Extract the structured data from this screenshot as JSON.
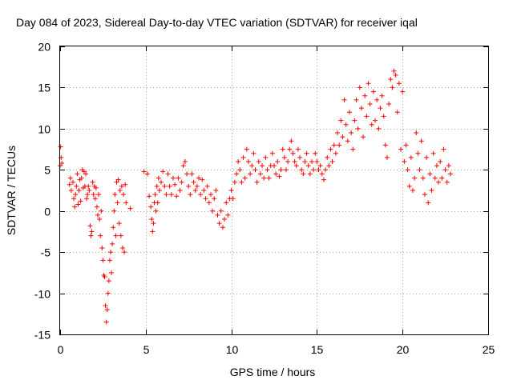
{
  "chart_data": {
    "type": "scatter",
    "title": "Day 084 of 2023, Sidereal Day-to-day VTEC variation (SDTVAR) for receiver iqal",
    "xlabel": "GPS time / hours",
    "ylabel": "SDTVAR / TECUs",
    "xlim": [
      0,
      25
    ],
    "ylim": [
      -15,
      20
    ],
    "xticks": [
      "0",
      "5",
      "10",
      "15",
      "20",
      "25"
    ],
    "yticks": [
      "-15",
      "-10",
      "-5",
      "0",
      "5",
      "10",
      "15",
      "20"
    ],
    "grid": true,
    "marker": "+",
    "series": [
      {
        "name": "iqal",
        "color": "#ff0000",
        "points": [
          [
            0.0,
            5.5
          ],
          [
            0.03,
            7.8
          ],
          [
            0.06,
            6.5
          ],
          [
            0.1,
            5.8
          ],
          [
            0.55,
            3.2
          ],
          [
            0.6,
            4.0
          ],
          [
            0.65,
            2.5
          ],
          [
            0.75,
            3.5
          ],
          [
            0.8,
            1.5
          ],
          [
            0.85,
            0.5
          ],
          [
            0.9,
            2.0
          ],
          [
            0.95,
            3.0
          ],
          [
            1.0,
            4.5
          ],
          [
            1.05,
            0.8
          ],
          [
            1.1,
            2.5
          ],
          [
            1.15,
            3.8
          ],
          [
            1.2,
            1.2
          ],
          [
            1.25,
            4.0
          ],
          [
            1.3,
            5.0
          ],
          [
            1.35,
            2.8
          ],
          [
            1.4,
            4.8
          ],
          [
            1.45,
            3.0
          ],
          [
            1.5,
            4.5
          ],
          [
            1.55,
            1.5
          ],
          [
            1.6,
            2.0
          ],
          [
            1.65,
            3.0
          ],
          [
            1.7,
            2.5
          ],
          [
            1.75,
            -1.8
          ],
          [
            1.8,
            -3.0
          ],
          [
            1.85,
            -2.5
          ],
          [
            1.9,
            3.5
          ],
          [
            1.95,
            2.0
          ],
          [
            2.0,
            3.0
          ],
          [
            2.05,
            1.5
          ],
          [
            2.1,
            2.8
          ],
          [
            2.15,
            0.5
          ],
          [
            2.2,
            -0.5
          ],
          [
            2.25,
            2.0
          ],
          [
            2.3,
            -1.0
          ],
          [
            2.35,
            -3.0
          ],
          [
            2.4,
            0.0
          ],
          [
            2.45,
            -4.5
          ],
          [
            2.5,
            -6.0
          ],
          [
            2.55,
            -7.8
          ],
          [
            2.6,
            -8.0
          ],
          [
            2.65,
            -11.5
          ],
          [
            2.7,
            -13.5
          ],
          [
            2.75,
            -12.0
          ],
          [
            2.8,
            -10.0
          ],
          [
            2.85,
            -8.5
          ],
          [
            2.9,
            -6.0
          ],
          [
            2.95,
            -5.0
          ],
          [
            3.0,
            -7.5
          ],
          [
            3.05,
            -4.0
          ],
          [
            3.1,
            -2.0
          ],
          [
            3.15,
            0.0
          ],
          [
            3.2,
            2.0
          ],
          [
            3.25,
            -3.0
          ],
          [
            3.3,
            3.5
          ],
          [
            3.35,
            1.0
          ],
          [
            3.4,
            3.8
          ],
          [
            3.45,
            -1.5
          ],
          [
            3.5,
            2.5
          ],
          [
            3.55,
            -3.0
          ],
          [
            3.6,
            3.0
          ],
          [
            3.65,
            -4.5
          ],
          [
            3.7,
            2.0
          ],
          [
            3.75,
            -5.0
          ],
          [
            3.8,
            3.2
          ],
          [
            3.85,
            1.0
          ],
          [
            4.1,
            0.3
          ],
          [
            4.9,
            4.8
          ],
          [
            5.1,
            4.5
          ],
          [
            5.2,
            1.8
          ],
          [
            5.3,
            0.5
          ],
          [
            5.35,
            -1.0
          ],
          [
            5.4,
            -2.5
          ],
          [
            5.45,
            -1.5
          ],
          [
            5.5,
            1.0
          ],
          [
            5.55,
            2.0
          ],
          [
            5.6,
            0.0
          ],
          [
            5.65,
            3.0
          ],
          [
            5.7,
            1.0
          ],
          [
            5.75,
            4.0
          ],
          [
            5.8,
            2.5
          ],
          [
            5.9,
            3.5
          ],
          [
            6.0,
            4.8
          ],
          [
            6.1,
            3.0
          ],
          [
            6.2,
            2.0
          ],
          [
            6.3,
            4.5
          ],
          [
            6.4,
            3.0
          ],
          [
            6.5,
            2.0
          ],
          [
            6.6,
            4.0
          ],
          [
            6.7,
            3.2
          ],
          [
            6.8,
            1.8
          ],
          [
            6.9,
            4.0
          ],
          [
            7.0,
            2.5
          ],
          [
            7.1,
            3.5
          ],
          [
            7.2,
            5.5
          ],
          [
            7.3,
            6.0
          ],
          [
            7.4,
            4.5
          ],
          [
            7.5,
            3.0
          ],
          [
            7.6,
            2.0
          ],
          [
            7.7,
            4.5
          ],
          [
            7.8,
            3.5
          ],
          [
            7.9,
            2.5
          ],
          [
            8.0,
            3.0
          ],
          [
            8.1,
            4.0
          ],
          [
            8.2,
            2.0
          ],
          [
            8.3,
            3.8
          ],
          [
            8.4,
            2.5
          ],
          [
            8.5,
            1.5
          ],
          [
            8.6,
            3.0
          ],
          [
            8.7,
            1.0
          ],
          [
            8.8,
            2.0
          ],
          [
            8.9,
            0.0
          ],
          [
            9.0,
            1.5
          ],
          [
            9.1,
            2.5
          ],
          [
            9.2,
            -0.5
          ],
          [
            9.3,
            -1.5
          ],
          [
            9.4,
            0.0
          ],
          [
            9.5,
            -2.0
          ],
          [
            9.6,
            -1.0
          ],
          [
            9.7,
            1.0
          ],
          [
            9.8,
            -0.5
          ],
          [
            9.9,
            1.5
          ],
          [
            10.0,
            2.5
          ],
          [
            10.1,
            1.5
          ],
          [
            10.2,
            3.5
          ],
          [
            10.3,
            4.5
          ],
          [
            10.4,
            6.0
          ],
          [
            10.5,
            5.0
          ],
          [
            10.6,
            3.5
          ],
          [
            10.7,
            6.5
          ],
          [
            10.8,
            4.0
          ],
          [
            10.9,
            7.5
          ],
          [
            11.0,
            6.0
          ],
          [
            11.1,
            4.5
          ],
          [
            11.2,
            5.5
          ],
          [
            11.3,
            7.0
          ],
          [
            11.4,
            5.0
          ],
          [
            11.5,
            3.5
          ],
          [
            11.6,
            6.0
          ],
          [
            11.7,
            4.5
          ],
          [
            11.8,
            5.5
          ],
          [
            11.9,
            4.0
          ],
          [
            12.0,
            6.5
          ],
          [
            12.1,
            5.0
          ],
          [
            12.2,
            4.0
          ],
          [
            12.3,
            5.5
          ],
          [
            12.4,
            7.0
          ],
          [
            12.5,
            5.5
          ],
          [
            12.6,
            4.5
          ],
          [
            12.7,
            6.0
          ],
          [
            12.8,
            4.2
          ],
          [
            12.9,
            5.0
          ],
          [
            13.0,
            7.5
          ],
          [
            13.1,
            6.5
          ],
          [
            13.2,
            5.0
          ],
          [
            13.3,
            6.0
          ],
          [
            13.4,
            7.5
          ],
          [
            13.5,
            8.5
          ],
          [
            13.6,
            7.0
          ],
          [
            13.7,
            6.0
          ],
          [
            13.8,
            5.5
          ],
          [
            13.9,
            7.5
          ],
          [
            14.0,
            6.5
          ],
          [
            14.1,
            5.0
          ],
          [
            14.2,
            4.5
          ],
          [
            14.3,
            6.0
          ],
          [
            14.4,
            7.0
          ],
          [
            14.5,
            5.5
          ],
          [
            14.6,
            4.5
          ],
          [
            14.7,
            6.0
          ],
          [
            14.8,
            5.0
          ],
          [
            14.9,
            7.0
          ],
          [
            15.0,
            6.0
          ],
          [
            15.1,
            5.0
          ],
          [
            15.2,
            5.5
          ],
          [
            15.3,
            4.5
          ],
          [
            15.4,
            3.8
          ],
          [
            15.5,
            5.0
          ],
          [
            15.6,
            6.5
          ],
          [
            15.7,
            5.5
          ],
          [
            15.8,
            7.5
          ],
          [
            15.9,
            6.0
          ],
          [
            16.0,
            8.0
          ],
          [
            16.1,
            7.0
          ],
          [
            16.2,
            9.5
          ],
          [
            16.3,
            8.0
          ],
          [
            16.4,
            11.0
          ],
          [
            16.5,
            9.0
          ],
          [
            16.6,
            13.5
          ],
          [
            16.7,
            10.5
          ],
          [
            16.8,
            8.5
          ],
          [
            16.9,
            12.0
          ],
          [
            17.0,
            9.5
          ],
          [
            17.1,
            7.5
          ],
          [
            17.2,
            11.0
          ],
          [
            17.3,
            13.5
          ],
          [
            17.4,
            10.0
          ],
          [
            17.5,
            15.0
          ],
          [
            17.6,
            12.5
          ],
          [
            17.7,
            9.0
          ],
          [
            17.8,
            14.0
          ],
          [
            17.9,
            11.5
          ],
          [
            18.0,
            15.5
          ],
          [
            18.1,
            13.0
          ],
          [
            18.2,
            10.5
          ],
          [
            18.3,
            14.5
          ],
          [
            18.4,
            11.0
          ],
          [
            18.5,
            13.5
          ],
          [
            18.6,
            10.0
          ],
          [
            18.7,
            12.5
          ],
          [
            18.8,
            14.0
          ],
          [
            18.9,
            11.5
          ],
          [
            19.0,
            8.0
          ],
          [
            19.1,
            6.5
          ],
          [
            19.2,
            13.0
          ],
          [
            19.3,
            16.0
          ],
          [
            19.4,
            15.0
          ],
          [
            19.5,
            17.0
          ],
          [
            19.6,
            16.5
          ],
          [
            19.7,
            12.0
          ],
          [
            19.8,
            15.5
          ],
          [
            19.9,
            7.5
          ],
          [
            20.0,
            14.5
          ],
          [
            20.1,
            6.0
          ],
          [
            20.2,
            8.0
          ],
          [
            20.3,
            5.0
          ],
          [
            20.4,
            3.0
          ],
          [
            20.5,
            6.5
          ],
          [
            20.6,
            2.5
          ],
          [
            20.7,
            4.0
          ],
          [
            20.8,
            9.5
          ],
          [
            20.9,
            7.0
          ],
          [
            21.0,
            5.0
          ],
          [
            21.1,
            8.5
          ],
          [
            21.2,
            4.0
          ],
          [
            21.3,
            2.0
          ],
          [
            21.4,
            6.5
          ],
          [
            21.5,
            1.0
          ],
          [
            21.6,
            4.5
          ],
          [
            21.7,
            2.5
          ],
          [
            21.8,
            7.0
          ],
          [
            21.9,
            4.0
          ],
          [
            22.0,
            5.5
          ],
          [
            22.1,
            3.5
          ],
          [
            22.2,
            6.0
          ],
          [
            22.3,
            4.0
          ],
          [
            22.4,
            7.5
          ],
          [
            22.5,
            5.0
          ],
          [
            22.6,
            3.5
          ],
          [
            22.7,
            5.5
          ],
          [
            22.8,
            4.5
          ]
        ]
      }
    ]
  }
}
